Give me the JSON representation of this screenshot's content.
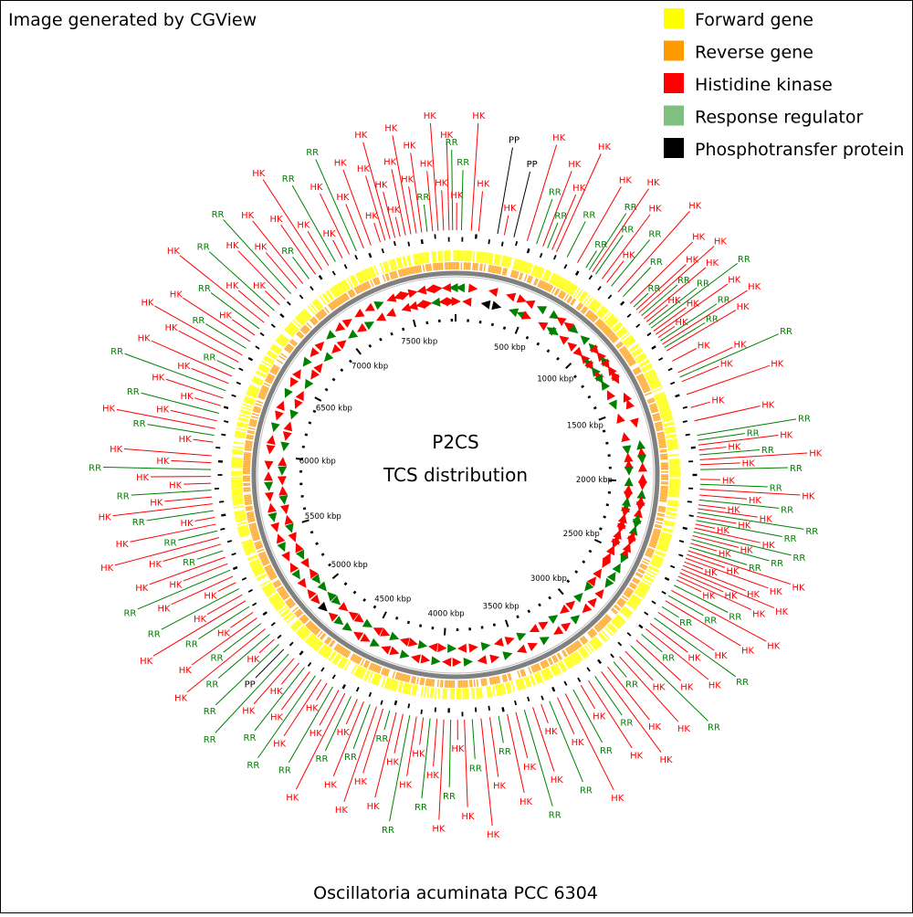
{
  "header": {
    "credit": "Image generated by CGView"
  },
  "center": {
    "line1": "P2CS",
    "line2": "TCS distribution"
  },
  "footer": {
    "organism": "Oscillatoria acuminata PCC 6304"
  },
  "legend": [
    {
      "label": "Forward gene",
      "color": "#ffff00"
    },
    {
      "label": "Reverse gene",
      "color": "#ff9900"
    },
    {
      "label": "Histidine kinase",
      "color": "#ff0000"
    },
    {
      "label": "Response regulator",
      "color": "#7fbf7f"
    },
    {
      "label": "Phosphotransfer protein",
      "color": "#000000"
    }
  ],
  "map": {
    "genome_length_kbp": 7830,
    "ticks_kbp": [
      500,
      1000,
      1500,
      2000,
      2500,
      3000,
      3500,
      4000,
      4500,
      5000,
      5500,
      6000,
      6500,
      7000,
      7500
    ],
    "tick_unit": "kbp",
    "colors": {
      "hk": "#ff0000",
      "rr": "#008000",
      "pp": "#000000",
      "forward": "#ffff00",
      "reverse": "#ff9900",
      "backbone": "#808080"
    }
  },
  "features": [
    {
      "k": "HK",
      "kbp": 7545
    },
    {
      "k": "HK",
      "kbp": 7573
    },
    {
      "k": "HK",
      "kbp": 7601
    },
    {
      "k": "HK",
      "kbp": 7629
    },
    {
      "k": "HK",
      "kbp": 7657
    },
    {
      "k": "RR",
      "kbp": 7685
    },
    {
      "k": "HK",
      "kbp": 7713
    },
    {
      "k": "HK",
      "kbp": 7741
    },
    {
      "k": "HK",
      "kbp": 7769
    },
    {
      "k": "HK",
      "kbp": 7797
    },
    {
      "k": "HK",
      "kbp": 7440
    },
    {
      "k": "HK",
      "kbp": 7466
    },
    {
      "k": "HK",
      "kbp": 7492
    },
    {
      "k": "HK",
      "kbp": 7518
    },
    {
      "k": "RR",
      "kbp": 7815
    },
    {
      "k": "HK",
      "kbp": 5
    },
    {
      "k": "RR",
      "kbp": 30
    },
    {
      "k": "HK",
      "kbp": 80
    },
    {
      "k": "HK",
      "kbp": 118
    },
    {
      "k": "PP",
      "kbp": 215
    },
    {
      "k": "HK",
      "kbp": 250
    },
    {
      "k": "PP",
      "kbp": 300
    },
    {
      "k": "HK",
      "kbp": 370
    },
    {
      "k": "RR",
      "kbp": 420
    },
    {
      "k": "HK",
      "kbp": 455
    },
    {
      "k": "RR",
      "kbp": 480
    },
    {
      "k": "HK",
      "kbp": 505
    },
    {
      "k": "HK",
      "kbp": 530
    },
    {
      "k": "RR",
      "kbp": 590
    },
    {
      "k": "HK",
      "kbp": 650
    },
    {
      "k": "RR",
      "kbp": 700
    },
    {
      "k": "RR",
      "kbp": 720
    },
    {
      "k": "HK",
      "kbp": 740
    },
    {
      "k": "RR",
      "kbp": 760
    },
    {
      "k": "HK",
      "kbp": 800
    },
    {
      "k": "HK",
      "kbp": 830
    },
    {
      "k": "RR",
      "kbp": 860
    },
    {
      "k": "HK",
      "kbp": 905
    },
    {
      "k": "RR",
      "kbp": 940
    },
    {
      "k": "HK",
      "kbp": 990
    },
    {
      "k": "RR",
      "kbp": 1015
    },
    {
      "k": "HK",
      "kbp": 1035
    },
    {
      "k": "HK",
      "kbp": 1055
    },
    {
      "k": "RR",
      "kbp": 1075
    },
    {
      "k": "HK",
      "kbp": 1095
    },
    {
      "k": "HK",
      "kbp": 1115
    },
    {
      "k": "RR",
      "kbp": 1135
    },
    {
      "k": "RR",
      "kbp": 1155
    },
    {
      "k": "HK",
      "kbp": 1175
    },
    {
      "k": "HK",
      "kbp": 1195
    },
    {
      "k": "HK",
      "kbp": 1215
    },
    {
      "k": "RR",
      "kbp": 1235
    },
    {
      "k": "HK",
      "kbp": 1255
    },
    {
      "k": "RR",
      "kbp": 1275
    },
    {
      "k": "HK",
      "kbp": 1295
    },
    {
      "k": "HK",
      "kbp": 1355
    },
    {
      "k": "HK",
      "kbp": 1420
    },
    {
      "k": "RR",
      "kbp": 1445
    },
    {
      "k": "HK",
      "kbp": 1470
    },
    {
      "k": "HK",
      "kbp": 1540
    },
    {
      "k": "HK",
      "kbp": 1610
    },
    {
      "k": "HK",
      "kbp": 1680
    },
    {
      "k": "RR",
      "kbp": 1755
    },
    {
      "k": "RR",
      "kbp": 1780
    },
    {
      "k": "HK",
      "kbp": 1805
    },
    {
      "k": "HK",
      "kbp": 1830
    },
    {
      "k": "RR",
      "kbp": 1855
    },
    {
      "k": "HK",
      "kbp": 1880
    },
    {
      "k": "HK",
      "kbp": 1905
    },
    {
      "k": "RR",
      "kbp": 1930
    },
    {
      "k": "HK",
      "kbp": 1980
    },
    {
      "k": "RR",
      "kbp": 2005
    },
    {
      "k": "HK",
      "kbp": 2030
    },
    {
      "k": "HK",
      "kbp": 2060
    },
    {
      "k": "RR",
      "kbp": 2085
    },
    {
      "k": "HK",
      "kbp": 2110
    },
    {
      "k": "HK",
      "kbp": 2130
    },
    {
      "k": "RR",
      "kbp": 2150
    },
    {
      "k": "HK",
      "kbp": 2170
    },
    {
      "k": "RR",
      "kbp": 2190
    },
    {
      "k": "HK",
      "kbp": 2210
    },
    {
      "k": "HK",
      "kbp": 2230
    },
    {
      "k": "RR",
      "kbp": 2250
    },
    {
      "k": "HK",
      "kbp": 2270
    },
    {
      "k": "RR",
      "kbp": 2290
    },
    {
      "k": "HK",
      "kbp": 2310
    },
    {
      "k": "RR",
      "kbp": 2330
    },
    {
      "k": "HK",
      "kbp": 2350
    },
    {
      "k": "HK",
      "kbp": 2370
    },
    {
      "k": "HK",
      "kbp": 2390
    },
    {
      "k": "HK",
      "kbp": 2410
    },
    {
      "k": "HK",
      "kbp": 2430
    },
    {
      "k": "HK",
      "kbp": 2450
    },
    {
      "k": "HK",
      "kbp": 2470
    },
    {
      "k": "HK",
      "kbp": 2490
    },
    {
      "k": "HK",
      "kbp": 2510
    },
    {
      "k": "RR",
      "kbp": 2540
    },
    {
      "k": "HK",
      "kbp": 2570
    },
    {
      "k": "RR",
      "kbp": 2600
    },
    {
      "k": "HK",
      "kbp": 2630
    },
    {
      "k": "RR",
      "kbp": 2665
    },
    {
      "k": "HK",
      "kbp": 2700
    },
    {
      "k": "RR",
      "kbp": 2735
    },
    {
      "k": "HK",
      "kbp": 2770
    },
    {
      "k": "HK",
      "kbp": 2805
    },
    {
      "k": "RR",
      "kbp": 2840
    },
    {
      "k": "HK",
      "kbp": 2880
    },
    {
      "k": "RR",
      "kbp": 2920
    },
    {
      "k": "HK",
      "kbp": 2960
    },
    {
      "k": "HK",
      "kbp": 3000
    },
    {
      "k": "RR",
      "kbp": 3040
    },
    {
      "k": "HK",
      "kbp": 3080
    },
    {
      "k": "HK",
      "kbp": 3120
    },
    {
      "k": "RR",
      "kbp": 3160
    },
    {
      "k": "HK",
      "kbp": 3200
    },
    {
      "k": "HK",
      "kbp": 3245
    },
    {
      "k": "RR",
      "kbp": 3290
    },
    {
      "k": "HK",
      "kbp": 3335
    },
    {
      "k": "HK",
      "kbp": 3380
    },
    {
      "k": "RR",
      "kbp": 3425
    },
    {
      "k": "HK",
      "kbp": 3470
    },
    {
      "k": "HK",
      "kbp": 3515
    },
    {
      "k": "RR",
      "kbp": 3560
    },
    {
      "k": "HK",
      "kbp": 3605
    },
    {
      "k": "HK",
      "kbp": 3650
    },
    {
      "k": "RR",
      "kbp": 3695
    },
    {
      "k": "HK",
      "kbp": 3740
    },
    {
      "k": "HK",
      "kbp": 3785
    },
    {
      "k": "RR",
      "kbp": 3830
    },
    {
      "k": "HK",
      "kbp": 3870
    },
    {
      "k": "HK",
      "kbp": 3905
    },
    {
      "k": "RR",
      "kbp": 3940
    },
    {
      "k": "HK",
      "kbp": 3975
    },
    {
      "k": "HK",
      "kbp": 4010
    },
    {
      "k": "RR",
      "kbp": 4045
    },
    {
      "k": "HK",
      "kbp": 4080
    },
    {
      "k": "HK",
      "kbp": 4115
    },
    {
      "k": "RR",
      "kbp": 4150
    },
    {
      "k": "HK",
      "kbp": 4185
    },
    {
      "k": "HK",
      "kbp": 4220
    },
    {
      "k": "RR",
      "kbp": 4255
    },
    {
      "k": "HK",
      "kbp": 4290
    },
    {
      "k": "HK",
      "kbp": 4325
    },
    {
      "k": "RR",
      "kbp": 4360
    },
    {
      "k": "HK",
      "kbp": 4395
    },
    {
      "k": "HK",
      "kbp": 4430
    },
    {
      "k": "RR",
      "kbp": 4465
    },
    {
      "k": "HK",
      "kbp": 4500
    },
    {
      "k": "HK",
      "kbp": 4535
    },
    {
      "k": "RR",
      "kbp": 4570
    },
    {
      "k": "HK",
      "kbp": 4605
    },
    {
      "k": "HK",
      "kbp": 4640
    },
    {
      "k": "RR",
      "kbp": 4675
    },
    {
      "k": "HK",
      "kbp": 4710
    },
    {
      "k": "RR",
      "kbp": 4745
    },
    {
      "k": "HK",
      "kbp": 4780
    },
    {
      "k": "HK",
      "kbp": 4815
    },
    {
      "k": "RR",
      "kbp": 4850
    },
    {
      "k": "PP",
      "kbp": 4885
    },
    {
      "k": "RR",
      "kbp": 4920
    },
    {
      "k": "HK",
      "kbp": 4955
    },
    {
      "k": "RR",
      "kbp": 4990
    },
    {
      "k": "HK",
      "kbp": 5025
    },
    {
      "k": "RR",
      "kbp": 5060
    },
    {
      "k": "HK",
      "kbp": 5095
    },
    {
      "k": "HK",
      "kbp": 5130
    },
    {
      "k": "RR",
      "kbp": 5165
    },
    {
      "k": "HK",
      "kbp": 5200
    },
    {
      "k": "HK",
      "kbp": 5235
    },
    {
      "k": "RR",
      "kbp": 5270
    },
    {
      "k": "HK",
      "kbp": 5305
    },
    {
      "k": "HK",
      "kbp": 5340
    },
    {
      "k": "RR",
      "kbp": 5375
    },
    {
      "k": "HK",
      "kbp": 5410
    },
    {
      "k": "HK",
      "kbp": 5445
    },
    {
      "k": "RR",
      "kbp": 5480
    },
    {
      "k": "HK",
      "kbp": 5515
    },
    {
      "k": "HK",
      "kbp": 5550
    },
    {
      "k": "RR",
      "kbp": 5585
    },
    {
      "k": "HK",
      "kbp": 5620
    },
    {
      "k": "HK",
      "kbp": 5655
    },
    {
      "k": "RR",
      "kbp": 5690
    },
    {
      "k": "HK",
      "kbp": 5725
    },
    {
      "k": "HK",
      "kbp": 5760
    },
    {
      "k": "RR",
      "kbp": 5795
    },
    {
      "k": "HK",
      "kbp": 5830
    },
    {
      "k": "HK",
      "kbp": 5865
    },
    {
      "k": "RR",
      "kbp": 5900
    },
    {
      "k": "HK",
      "kbp": 5935
    },
    {
      "k": "HK",
      "kbp": 5970
    },
    {
      "k": "HK",
      "kbp": 6040
    },
    {
      "k": "RR",
      "kbp": 6075
    },
    {
      "k": "HK",
      "kbp": 6110
    },
    {
      "k": "HK",
      "kbp": 6150
    },
    {
      "k": "RR",
      "kbp": 6190
    },
    {
      "k": "HK",
      "kbp": 6230
    },
    {
      "k": "HK",
      "kbp": 6270
    },
    {
      "k": "RR",
      "kbp": 6310
    },
    {
      "k": "HK",
      "kbp": 6350
    },
    {
      "k": "HK",
      "kbp": 6390
    },
    {
      "k": "RR",
      "kbp": 6430
    },
    {
      "k": "HK",
      "kbp": 6470
    },
    {
      "k": "HK",
      "kbp": 6510
    },
    {
      "k": "RR",
      "kbp": 6550
    },
    {
      "k": "HK",
      "kbp": 6590
    },
    {
      "k": "HK",
      "kbp": 6630
    },
    {
      "k": "RR",
      "kbp": 6670
    },
    {
      "k": "HK",
      "kbp": 6710
    },
    {
      "k": "HK",
      "kbp": 6750
    },
    {
      "k": "RR",
      "kbp": 6790
    },
    {
      "k": "HK",
      "kbp": 6830
    },
    {
      "k": "HK",
      "kbp": 6870
    },
    {
      "k": "RR",
      "kbp": 6910
    },
    {
      "k": "HK",
      "kbp": 6950
    },
    {
      "k": "HK",
      "kbp": 6990
    },
    {
      "k": "RR",
      "kbp": 7030
    },
    {
      "k": "HK",
      "kbp": 7070
    },
    {
      "k": "HK",
      "kbp": 7110
    },
    {
      "k": "HK",
      "kbp": 7150
    },
    {
      "k": "RR",
      "kbp": 7190
    },
    {
      "k": "HK",
      "kbp": 7230
    },
    {
      "k": "HK",
      "kbp": 7270
    },
    {
      "k": "RR",
      "kbp": 7310
    },
    {
      "k": "HK",
      "kbp": 7350
    },
    {
      "k": "HK",
      "kbp": 7390
    }
  ]
}
